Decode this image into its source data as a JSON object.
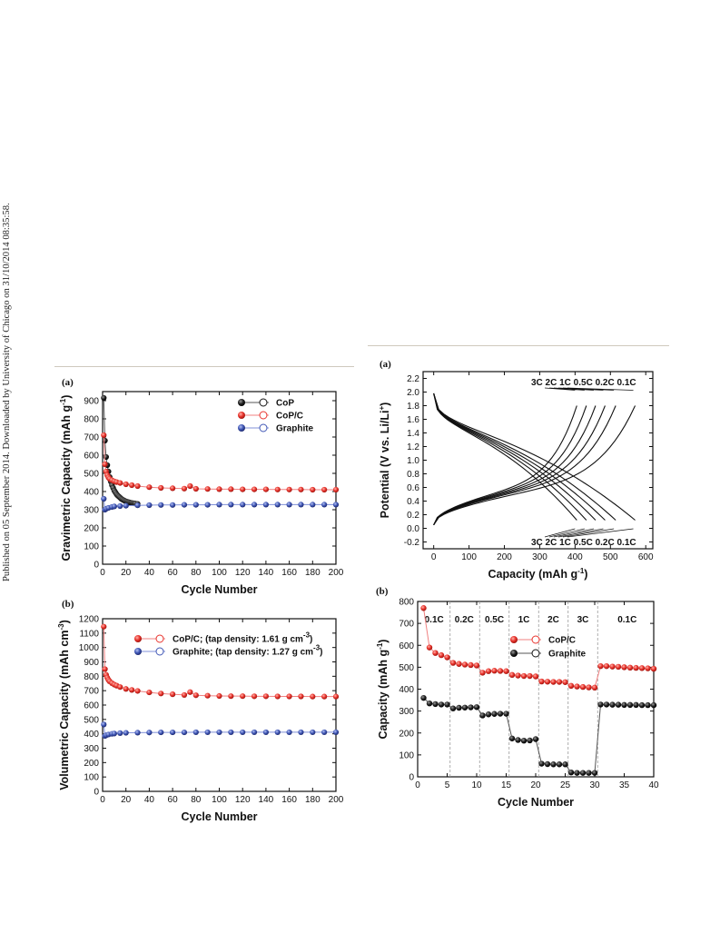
{
  "side_note": "Published on 05 September 2014. Downloaded by University of Chicago on 31/10/2014 08:35:58.",
  "colors": {
    "red": "#e8332c",
    "blue": "#3f56b5",
    "black": "#111111",
    "red_line": "#f08080",
    "blue_line": "#8090d8"
  },
  "chart_data": [
    {
      "panel_label": "(a)",
      "type": "scatter",
      "xlabel": "Cycle Number",
      "ylabel": "Gravimetric Capacity (mAh g",
      "ylabel_sup": "-1",
      "ylabel_end": ")",
      "xlim": [
        0,
        200
      ],
      "ylim": [
        0,
        950
      ],
      "xticks": [
        0,
        20,
        40,
        60,
        80,
        100,
        120,
        140,
        160,
        180,
        200
      ],
      "yticks": [
        0,
        100,
        200,
        300,
        400,
        500,
        600,
        700,
        800,
        900
      ],
      "series": [
        {
          "name": "CoP",
          "color": "black",
          "x": [
            1,
            2,
            3,
            4,
            5,
            6,
            7,
            8,
            9,
            10,
            11,
            12,
            13,
            14,
            15,
            16,
            17,
            18,
            19,
            20,
            21,
            22,
            23,
            24,
            25,
            26,
            27,
            28,
            30
          ],
          "y": [
            915,
            680,
            590,
            545,
            510,
            480,
            455,
            435,
            420,
            405,
            395,
            385,
            378,
            372,
            366,
            360,
            356,
            352,
            349,
            346,
            344,
            342,
            340,
            338,
            337,
            336,
            335,
            334,
            332
          ]
        },
        {
          "name": "CoP/C",
          "color": "red",
          "x": [
            1,
            2,
            3,
            4,
            5,
            6,
            8,
            10,
            12,
            15,
            20,
            25,
            30,
            40,
            50,
            60,
            70,
            75,
            80,
            90,
            100,
            110,
            120,
            130,
            140,
            150,
            160,
            170,
            180,
            190,
            200
          ],
          "y": [
            710,
            550,
            510,
            490,
            478,
            470,
            462,
            456,
            452,
            447,
            440,
            435,
            430,
            424,
            420,
            418,
            416,
            430,
            415,
            414,
            413,
            413,
            412,
            412,
            412,
            411,
            411,
            411,
            410,
            410,
            410
          ]
        },
        {
          "name": "Graphite",
          "color": "blue",
          "x": [
            1,
            2,
            3,
            5,
            8,
            10,
            15,
            20,
            30,
            40,
            50,
            60,
            70,
            80,
            90,
            100,
            110,
            120,
            130,
            140,
            150,
            160,
            170,
            180,
            190,
            200
          ],
          "y": [
            360,
            300,
            305,
            310,
            315,
            318,
            320,
            322,
            324,
            325,
            326,
            326,
            327,
            327,
            327,
            328,
            328,
            328,
            328,
            328,
            328,
            328,
            328,
            328,
            328,
            328
          ]
        }
      ]
    },
    {
      "panel_label": "(b)",
      "type": "scatter",
      "xlabel": "Cycle Number",
      "ylabel": "Volumetric Capacity (mAh cm",
      "ylabel_sup": "-3",
      "ylabel_end": ")",
      "xlim": [
        0,
        200
      ],
      "ylim": [
        0,
        1200
      ],
      "xticks": [
        0,
        20,
        40,
        60,
        80,
        100,
        120,
        140,
        160,
        180,
        200
      ],
      "yticks": [
        0,
        100,
        200,
        300,
        400,
        500,
        600,
        700,
        800,
        900,
        1000,
        1100,
        1200
      ],
      "series": [
        {
          "name": "CoP/C; (tap density: 1.61 g cm",
          "name_sup": "-3",
          "name_end": ")",
          "color": "red",
          "x": [
            1,
            2,
            3,
            4,
            5,
            6,
            8,
            10,
            12,
            15,
            20,
            25,
            30,
            40,
            50,
            60,
            70,
            75,
            80,
            90,
            100,
            110,
            120,
            130,
            140,
            150,
            160,
            170,
            180,
            190,
            200
          ],
          "y": [
            1145,
            850,
            810,
            790,
            775,
            765,
            752,
            742,
            735,
            725,
            712,
            705,
            698,
            688,
            680,
            675,
            670,
            690,
            668,
            665,
            663,
            662,
            662,
            661,
            661,
            660,
            660,
            660,
            659,
            659,
            659
          ]
        },
        {
          "name": "Graphite; (tap density: 1.27 g cm",
          "name_sup": "-3",
          "name_end": ")",
          "color": "blue",
          "x": [
            1,
            2,
            3,
            5,
            8,
            10,
            15,
            20,
            30,
            40,
            50,
            60,
            70,
            80,
            90,
            100,
            110,
            120,
            130,
            140,
            150,
            160,
            170,
            180,
            190,
            200
          ],
          "y": [
            465,
            385,
            390,
            395,
            400,
            402,
            405,
            407,
            408,
            409,
            410,
            410,
            410,
            411,
            411,
            411,
            411,
            411,
            411,
            411,
            411,
            411,
            411,
            411,
            411,
            411
          ]
        }
      ]
    },
    {
      "panel_label": "(a)",
      "type": "line",
      "xlabel": "Capacity (mAh g",
      "xlabel_sup": "-1",
      "xlabel_end": ")",
      "ylabel": "Potential (V vs. Li/Li",
      "ylabel_sup": "+",
      "ylabel_end": ")",
      "xlim": [
        -30,
        620
      ],
      "ylim": [
        -0.3,
        2.3
      ],
      "xticks": [
        0,
        100,
        200,
        300,
        400,
        500,
        600
      ],
      "yticks": [
        "-0.2",
        "0.0",
        "0.2",
        "0.4",
        "0.6",
        "0.8",
        "1.0",
        "1.2",
        "1.4",
        "1.6",
        "1.8",
        "2.0",
        "2.2"
      ],
      "rates": [
        "3C",
        "2C",
        "1C",
        "0.5C",
        "0.2C",
        "0.1C"
      ],
      "end_capacities": [
        405,
        432,
        458,
        485,
        515,
        570
      ],
      "top_annotation": "3C 2C 1C 0.5C 0.2C 0.1C",
      "bottom_annotation": "3C 2C 1C 0.5C 0.2C 0.1C"
    },
    {
      "panel_label": "(b)",
      "type": "scatter",
      "xlabel": "Cycle Number",
      "ylabel": "Capacity (mAh g",
      "ylabel_sup": "-1",
      "ylabel_end": ")",
      "xlim": [
        0,
        40
      ],
      "ylim": [
        0,
        800
      ],
      "xticks": [
        0,
        5,
        10,
        15,
        20,
        25,
        30,
        35,
        40
      ],
      "yticks": [
        0,
        100,
        200,
        300,
        400,
        500,
        600,
        700,
        800
      ],
      "dividers": [
        5.5,
        10.5,
        15.5,
        20.5,
        25.5,
        30.5
      ],
      "rate_labels": [
        "0.1C",
        "0.2C",
        "0.5C",
        "1C",
        "2C",
        "3C",
        "0.1C"
      ],
      "rate_label_x": [
        2.8,
        7.9,
        13,
        18,
        23,
        28,
        35.5
      ],
      "series": [
        {
          "name": "CoP/C",
          "color": "red",
          "x": [
            1,
            2,
            3,
            4,
            5,
            6,
            7,
            8,
            9,
            10,
            11,
            12,
            13,
            14,
            15,
            16,
            17,
            18,
            19,
            20,
            21,
            22,
            23,
            24,
            25,
            26,
            27,
            28,
            29,
            30,
            31,
            32,
            33,
            34,
            35,
            36,
            37,
            38,
            39,
            40
          ],
          "y": [
            770,
            590,
            565,
            555,
            545,
            520,
            515,
            512,
            510,
            508,
            475,
            482,
            484,
            483,
            482,
            465,
            462,
            460,
            460,
            458,
            435,
            434,
            433,
            433,
            432,
            415,
            412,
            410,
            408,
            407,
            505,
            505,
            503,
            502,
            500,
            498,
            497,
            496,
            495,
            493
          ]
        },
        {
          "name": "Graphite",
          "color": "black",
          "x": [
            1,
            2,
            3,
            4,
            5,
            6,
            7,
            8,
            9,
            10,
            11,
            12,
            13,
            14,
            15,
            16,
            17,
            18,
            19,
            20,
            21,
            22,
            23,
            24,
            25,
            26,
            27,
            28,
            29,
            30,
            31,
            32,
            33,
            34,
            35,
            36,
            37,
            38,
            39,
            40
          ],
          "y": [
            360,
            335,
            332,
            330,
            330,
            312,
            315,
            316,
            317,
            318,
            280,
            285,
            287,
            288,
            288,
            175,
            168,
            165,
            166,
            172,
            60,
            58,
            57,
            57,
            57,
            20,
            18,
            18,
            18,
            18,
            330,
            330,
            329,
            329,
            328,
            328,
            328,
            327,
            327,
            327
          ]
        }
      ]
    }
  ]
}
